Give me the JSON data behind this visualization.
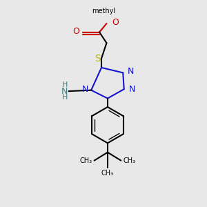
{
  "bg_color": "#e8e8e8",
  "bond_lw": 1.5,
  "font_size": 9,
  "colors": {
    "N": "#1414cc",
    "O": "#cc0000",
    "S": "#b8b800",
    "NH2": "#408080",
    "C": "#000000"
  },
  "xlim": [
    0.15,
    0.85
  ],
  "ylim": [
    0.02,
    1.02
  ]
}
